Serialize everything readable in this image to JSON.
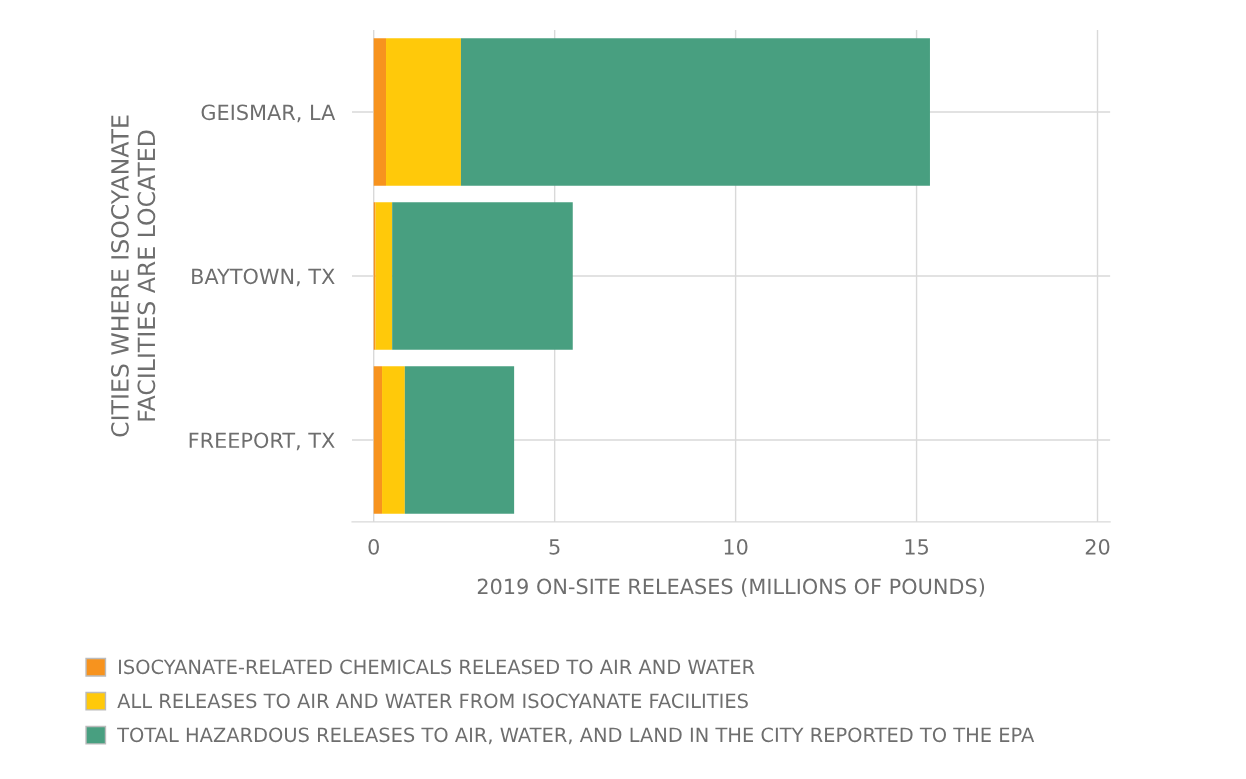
{
  "chart_data": {
    "type": "bar",
    "orientation": "horizontal",
    "stacked": true,
    "categories": [
      "GEISMAR, LA",
      "BAYTOWN, TX",
      "FREEPORT, TX"
    ],
    "series": [
      {
        "name": "ISOCYANATE-RELATED CHEMICALS RELEASED TO AIR AND WATER",
        "color": "#f7931e",
        "values": [
          0.34,
          0.05,
          0.23
        ]
      },
      {
        "name": "ALL RELEASES TO AIR AND WATER FROM ISOCYANATE FACILITIES",
        "color": "#ffc90a",
        "values": [
          2.07,
          0.46,
          0.63
        ]
      },
      {
        "name": "TOTAL HAZARDOUS RELEASES TO AIR, WATER, AND LAND IN THE CITY REPORTED TO THE EPA",
        "color": "#489f80",
        "values": [
          12.96,
          4.99,
          3.02
        ]
      }
    ],
    "xlabel": "2019 ON-SITE RELEASES (MILLIONS OF POUNDS)",
    "ylabel": "CITIES WHERE ISOCYANATE\nFACILITIES ARE LOCATED",
    "xlim": [
      -0.6,
      20.35
    ],
    "xticks": [
      0,
      5,
      10,
      15,
      20
    ],
    "grid": true,
    "legend": "bottom left"
  }
}
